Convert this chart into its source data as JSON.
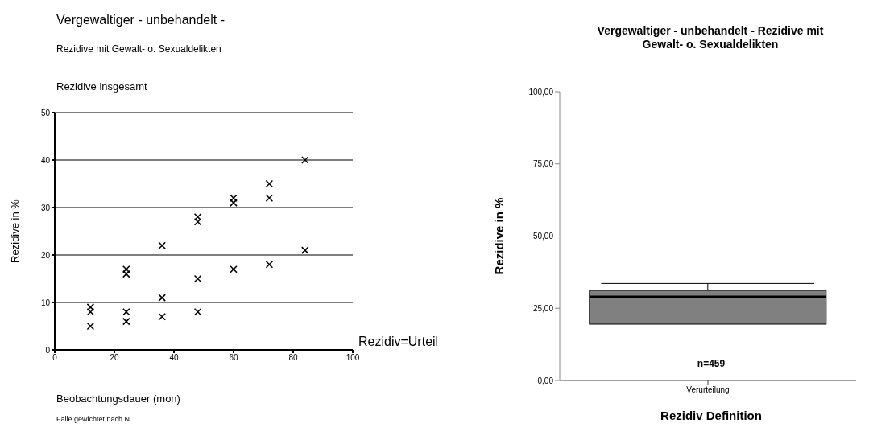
{
  "chart_data": [
    {
      "type": "scatter",
      "title": "Vergewaltiger - unbehandelt -",
      "subtitle": "Rezidive mit Gewalt- o. Sexualdelikten",
      "xlabel": "Beobachtungsdauer (mon)",
      "ylabel": "Rezidive in %",
      "annotations": [
        "Rezidive insgesamt",
        "Rezidiv=Urteil",
        "Fälle gewichtet nach N"
      ],
      "x": [
        12,
        12,
        12,
        24,
        24,
        24,
        24,
        36,
        36,
        36,
        48,
        48,
        48,
        48,
        60,
        60,
        60,
        72,
        72,
        72,
        84,
        84
      ],
      "series": [
        {
          "color": "#000000",
          "values": [
            9,
            8,
            5,
            17,
            16,
            8,
            6,
            22,
            11,
            7,
            28,
            27,
            15,
            8,
            32,
            31,
            17,
            35,
            32,
            18,
            40,
            21
          ]
        }
      ],
      "xlim": [
        0,
        100
      ],
      "xticks": [
        0,
        20,
        40,
        60,
        80,
        100
      ],
      "ylim": [
        0,
        50
      ],
      "yticks": [
        0,
        10,
        20,
        30,
        40,
        50
      ],
      "grid": "y",
      "marker": "cross"
    },
    {
      "type": "box",
      "title": "Vergewaltiger - unbehandelt - Rezidive mit Gewalt- o. Sexualdelikten",
      "xlabel": "Rezidiv Definition",
      "ylabel": "Rezidive in %",
      "categories": [
        "Verurteilung"
      ],
      "annotations": [
        "n=459"
      ],
      "series": [
        {
          "color": "#808080",
          "boxes": [
            {
              "low": 19.5,
              "q1": 19.5,
              "median": 29,
              "q3": 31.2,
              "high": 33.6
            }
          ]
        }
      ],
      "ylim": [
        0,
        100
      ],
      "yticks": [
        {
          "value": 0,
          "label": "0,00"
        },
        {
          "value": 25,
          "label": "25,00"
        },
        {
          "value": 50,
          "label": "50,00"
        },
        {
          "value": 75,
          "label": "75,00"
        },
        {
          "value": 100,
          "label": "100,00"
        }
      ]
    }
  ]
}
